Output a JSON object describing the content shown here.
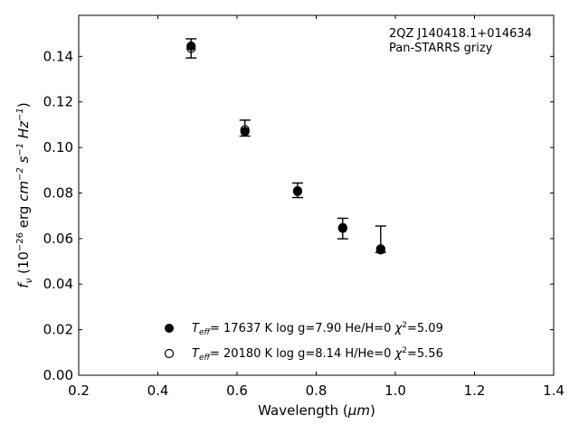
{
  "chart_data": {
    "type": "scatter",
    "xlabel": "Wavelength (μm)",
    "ylabel": "fν (10⁻²⁶ erg cm⁻² s⁻¹ Hz⁻¹)",
    "xlim": [
      0.2,
      1.4
    ],
    "ylim": [
      0.0,
      0.158
    ],
    "xticks": [
      "0.2",
      "0.4",
      "0.6",
      "0.8",
      "1.0",
      "1.2",
      "1.4"
    ],
    "yticks": [
      "0.00",
      "0.02",
      "0.04",
      "0.06",
      "0.08",
      "0.10",
      "0.12",
      "0.14"
    ],
    "annotation": [
      "2QZ J140418.1+014634",
      "Pan-STARRS grizy"
    ],
    "observed": {
      "x": [
        0.484,
        0.62,
        0.753,
        0.867,
        0.963
      ],
      "y": [
        0.1435,
        0.1085,
        0.0812,
        0.0644,
        0.0597
      ],
      "yerr": [
        0.0042,
        0.0035,
        0.0032,
        0.0045,
        0.0058
      ]
    },
    "series": [
      {
        "name": "Teff= 17637 K  log g=7.90  He/H=0  χ²=5.09",
        "marker": "filled",
        "x": [
          0.484,
          0.62,
          0.753,
          0.867,
          0.963
        ],
        "y": [
          0.1445,
          0.107,
          0.0807,
          0.0648,
          0.055
        ]
      },
      {
        "name": "Teff= 20180 K  log g=8.14  H/He=0  χ²=5.56",
        "marker": "open",
        "x": [
          0.484,
          0.62,
          0.753,
          0.867,
          0.963
        ],
        "y": [
          0.1435,
          0.1078,
          0.081,
          0.0645,
          0.0555
        ]
      }
    ],
    "grid": false,
    "legend_placement": "bottom-center",
    "colors": {
      "marker": "#000000",
      "background": "#ffffff"
    }
  },
  "legend": [
    {
      "teff_var": "T",
      "teff_sub": "eff",
      "text": "= 17637 K  log g=7.90  He/H=0  ",
      "chi": "χ",
      "chi_sup": "2",
      "chi_val": "=5.09"
    },
    {
      "teff_var": "T",
      "teff_sub": "eff",
      "text": "= 20180 K  log g=8.14  H/He=0  ",
      "chi": "χ",
      "chi_sup": "2",
      "chi_val": "=5.56"
    }
  ],
  "ylabel_parts": {
    "f": "f",
    "nu": "ν",
    "open": " (10",
    "exp1": "−26",
    "erg": " erg ",
    "cm": "cm",
    "exp2": "−2",
    "s": " s",
    "exp3": "−1",
    "hz": " Hz",
    "exp4": "−1",
    "close": ")"
  },
  "xlabel_parts": {
    "pre": "Wavelength (",
    "mu": "μ",
    "m": "m",
    "post": ")"
  }
}
